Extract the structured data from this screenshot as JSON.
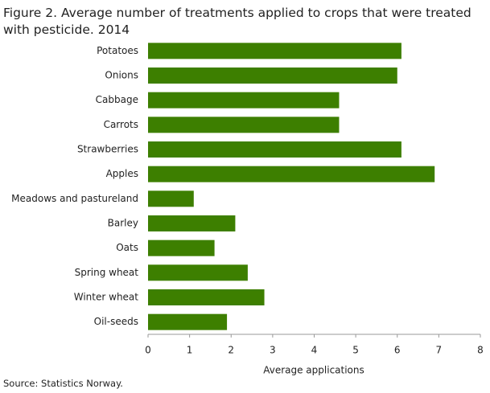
{
  "chart_data": {
    "type": "barh",
    "title": "Figure 2. Average number of treatments applied to crops that were treated with pesticide. 2014",
    "categories": [
      "Potatoes",
      "Onions",
      "Cabbage",
      "Carrots",
      "Strawberries",
      "Apples",
      "Meadows and pastureland",
      "Barley",
      "Oats",
      "Spring wheat",
      "Winter wheat",
      "Oil-seeds"
    ],
    "values": [
      6.1,
      6.0,
      4.6,
      4.6,
      6.1,
      6.9,
      1.1,
      2.1,
      1.6,
      2.4,
      2.8,
      1.9
    ],
    "color": "#3d7f00",
    "xlim": [
      0,
      8
    ],
    "xticks": [
      0,
      1,
      2,
      3,
      4,
      5,
      6,
      7,
      8
    ],
    "xlabel": "Average applications",
    "source": "Source: Statistics Norway.",
    "grid": false
  }
}
